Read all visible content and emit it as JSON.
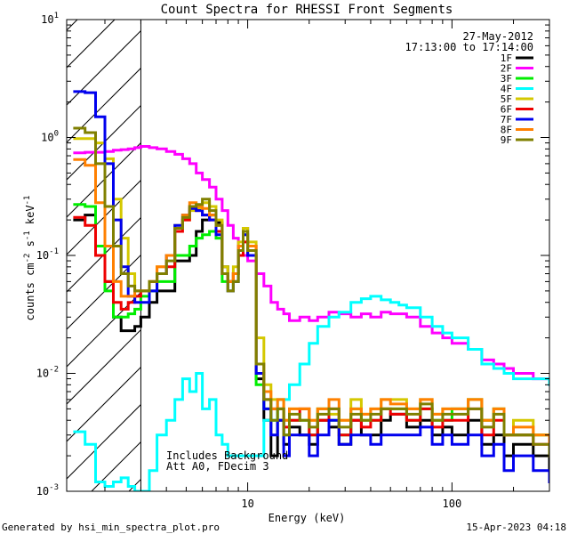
{
  "chart_data": {
    "type": "line",
    "title": "Count Spectra for RHESSI Front Segments",
    "xlabel": "Energy (keV)",
    "ylabel": "counts cm-2 s-1 keV-1",
    "xscale": "log",
    "yscale": "log",
    "xlim": [
      1.3,
      300
    ],
    "ylim": [
      0.001,
      10
    ],
    "x_ticks": [
      {
        "v": 10,
        "label": "10"
      },
      {
        "v": 100,
        "label": "100"
      }
    ],
    "y_ticks": [
      {
        "v": 10,
        "base": "10",
        "exp": "1"
      },
      {
        "v": 1,
        "base": "10",
        "exp": "0"
      },
      {
        "v": 0.1,
        "base": "10",
        "exp": "-1"
      },
      {
        "v": 0.01,
        "base": "10",
        "exp": "-2"
      },
      {
        "v": 0.001,
        "base": "10",
        "exp": "-3"
      }
    ],
    "date": "27-May-2012",
    "time_range": "17:13:00 to 17:14:00",
    "annotation_lines": [
      "Includes Background",
      "Att A0, FDecim 3"
    ],
    "hatched_region_xmax": 3.0,
    "legend_placement": "top-right",
    "series": [
      {
        "name": "1F",
        "color": "#000000",
        "x": [
          1.4,
          1.6,
          1.8,
          2.0,
          2.2,
          2.4,
          2.6,
          2.8,
          3.0,
          3.3,
          3.6,
          4.0,
          4.4,
          4.8,
          5.2,
          5.6,
          6.0,
          6.5,
          7.0,
          7.5,
          8.0,
          8.5,
          9.0,
          9.5,
          10,
          11,
          12,
          13,
          14,
          15,
          16,
          18,
          20,
          22,
          25,
          28,
          32,
          36,
          40,
          45,
          50,
          60,
          70,
          80,
          90,
          100,
          120,
          140,
          160,
          180,
          200,
          250,
          300
        ],
        "y": [
          0.2,
          0.22,
          0.1,
          0.06,
          0.03,
          0.023,
          0.023,
          0.025,
          0.03,
          0.04,
          0.05,
          0.05,
          0.09,
          0.09,
          0.1,
          0.16,
          0.2,
          0.22,
          0.19,
          0.08,
          0.06,
          0.07,
          0.12,
          0.17,
          0.12,
          0.009,
          0.004,
          0.002,
          0.004,
          0.0025,
          0.0035,
          0.003,
          0.0025,
          0.004,
          0.0035,
          0.0025,
          0.004,
          0.003,
          0.003,
          0.004,
          0.0045,
          0.0035,
          0.004,
          0.003,
          0.0035,
          0.003,
          0.004,
          0.0025,
          0.003,
          0.002,
          0.0025,
          0.002,
          0.0015
        ]
      },
      {
        "name": "2F",
        "color": "#ff00ff",
        "x": [
          1.4,
          1.6,
          1.8,
          2.0,
          2.2,
          2.4,
          2.6,
          2.8,
          3.0,
          3.3,
          3.6,
          4.0,
          4.4,
          4.8,
          5.2,
          5.6,
          6.0,
          6.5,
          7.0,
          7.5,
          8.0,
          8.5,
          9.0,
          9.5,
          10,
          11,
          12,
          13,
          14,
          15,
          16,
          18,
          20,
          22,
          25,
          28,
          32,
          36,
          40,
          45,
          50,
          60,
          70,
          80,
          90,
          100,
          120,
          140,
          160,
          180,
          200,
          250,
          300
        ],
        "y": [
          0.74,
          0.75,
          0.75,
          0.76,
          0.78,
          0.79,
          0.8,
          0.82,
          0.84,
          0.82,
          0.8,
          0.76,
          0.72,
          0.66,
          0.6,
          0.5,
          0.44,
          0.38,
          0.3,
          0.24,
          0.18,
          0.14,
          0.11,
          0.1,
          0.09,
          0.07,
          0.055,
          0.04,
          0.035,
          0.032,
          0.028,
          0.03,
          0.028,
          0.03,
          0.033,
          0.032,
          0.03,
          0.032,
          0.03,
          0.033,
          0.032,
          0.03,
          0.025,
          0.022,
          0.02,
          0.018,
          0.016,
          0.013,
          0.012,
          0.011,
          0.01,
          0.009,
          0.008
        ]
      },
      {
        "name": "3F",
        "color": "#00ee00",
        "x": [
          1.4,
          1.6,
          1.8,
          2.0,
          2.2,
          2.4,
          2.6,
          2.8,
          3.0,
          3.3,
          3.6,
          4.0,
          4.4,
          4.8,
          5.2,
          5.6,
          6.0,
          6.5,
          7.0,
          7.5,
          8.0,
          8.5,
          9.0,
          9.5,
          10,
          11,
          12,
          13,
          14,
          15,
          16,
          18,
          20,
          22,
          25,
          28,
          32,
          36,
          40,
          45,
          50,
          60,
          70,
          80,
          90,
          100,
          120,
          140,
          160,
          180,
          200,
          250,
          300
        ],
        "y": [
          0.27,
          0.26,
          0.12,
          0.05,
          0.03,
          0.03,
          0.032,
          0.035,
          0.045,
          0.05,
          0.06,
          0.06,
          0.1,
          0.1,
          0.12,
          0.14,
          0.15,
          0.16,
          0.14,
          0.06,
          0.05,
          0.06,
          0.1,
          0.15,
          0.1,
          0.008,
          0.005,
          0.004,
          0.005,
          0.003,
          0.004,
          0.004,
          0.003,
          0.005,
          0.004,
          0.003,
          0.005,
          0.004,
          0.004,
          0.005,
          0.005,
          0.004,
          0.005,
          0.004,
          0.004,
          0.005,
          0.006,
          0.004,
          0.005,
          0.003,
          0.003,
          0.003,
          0.002
        ]
      },
      {
        "name": "4F",
        "color": "#00ffff",
        "x": [
          1.4,
          1.6,
          1.8,
          2.0,
          2.2,
          2.4,
          2.6,
          2.8,
          3.0,
          3.3,
          3.6,
          4.0,
          4.4,
          4.8,
          5.2,
          5.6,
          6.0,
          6.5,
          7.0,
          7.5,
          8.0,
          9.0,
          10,
          12,
          14,
          16,
          18,
          20,
          22,
          25,
          28,
          32,
          36,
          40,
          45,
          50,
          55,
          60,
          70,
          80,
          90,
          100,
          120,
          140,
          160,
          180,
          200,
          250,
          300
        ],
        "y": [
          0.0032,
          0.0025,
          0.0012,
          0.0011,
          0.0012,
          0.0013,
          0.0011,
          0.001,
          0.001,
          0.0015,
          0.003,
          0.004,
          0.006,
          0.009,
          0.007,
          0.01,
          0.005,
          0.006,
          0.003,
          0.0025,
          0.002,
          0.002,
          0.002,
          0.004,
          0.006,
          0.008,
          0.012,
          0.018,
          0.025,
          0.03,
          0.033,
          0.04,
          0.043,
          0.045,
          0.042,
          0.04,
          0.038,
          0.036,
          0.03,
          0.025,
          0.022,
          0.02,
          0.016,
          0.012,
          0.011,
          0.01,
          0.009,
          0.009,
          0.008
        ]
      },
      {
        "name": "5F",
        "color": "#d4c800",
        "x": [
          1.4,
          1.6,
          1.8,
          2.0,
          2.2,
          2.4,
          2.6,
          2.8,
          3.0,
          3.3,
          3.6,
          4.0,
          4.4,
          4.8,
          5.2,
          5.6,
          6.0,
          6.5,
          7.0,
          7.5,
          8.0,
          8.5,
          9.0,
          9.5,
          10,
          11,
          12,
          13,
          14,
          15,
          16,
          18,
          20,
          22,
          25,
          28,
          32,
          36,
          40,
          45,
          50,
          60,
          70,
          80,
          90,
          100,
          120,
          140,
          160,
          180,
          200,
          250,
          300
        ],
        "y": [
          0.98,
          0.98,
          0.9,
          0.66,
          0.3,
          0.14,
          0.07,
          0.05,
          0.05,
          0.06,
          0.08,
          0.1,
          0.18,
          0.2,
          0.24,
          0.25,
          0.28,
          0.26,
          0.2,
          0.08,
          0.06,
          0.08,
          0.13,
          0.17,
          0.13,
          0.02,
          0.008,
          0.006,
          0.006,
          0.004,
          0.005,
          0.005,
          0.004,
          0.005,
          0.0045,
          0.004,
          0.006,
          0.0045,
          0.005,
          0.006,
          0.006,
          0.005,
          0.006,
          0.0045,
          0.005,
          0.005,
          0.006,
          0.004,
          0.005,
          0.003,
          0.004,
          0.003,
          0.002
        ]
      },
      {
        "name": "6F",
        "color": "#ee0000",
        "x": [
          1.4,
          1.6,
          1.8,
          2.0,
          2.2,
          2.4,
          2.6,
          2.8,
          3.0,
          3.3,
          3.6,
          4.0,
          4.4,
          4.8,
          5.2,
          5.6,
          6.0,
          6.5,
          7.0,
          7.5,
          8.0,
          8.5,
          9.0,
          9.5,
          10,
          11,
          12,
          13,
          14,
          15,
          16,
          18,
          20,
          22,
          25,
          28,
          32,
          36,
          40,
          45,
          50,
          60,
          70,
          80,
          90,
          100,
          120,
          140,
          160,
          180,
          200,
          250,
          300
        ],
        "y": [
          0.21,
          0.18,
          0.1,
          0.06,
          0.04,
          0.035,
          0.04,
          0.045,
          0.05,
          0.06,
          0.07,
          0.08,
          0.16,
          0.2,
          0.26,
          0.24,
          0.22,
          0.2,
          0.16,
          0.07,
          0.06,
          0.07,
          0.1,
          0.13,
          0.1,
          0.01,
          0.006,
          0.005,
          0.005,
          0.0035,
          0.004,
          0.005,
          0.003,
          0.004,
          0.005,
          0.003,
          0.004,
          0.0035,
          0.004,
          0.005,
          0.0045,
          0.004,
          0.005,
          0.0035,
          0.004,
          0.004,
          0.005,
          0.003,
          0.004,
          0.003,
          0.003,
          0.0025,
          0.002
        ]
      },
      {
        "name": "7F",
        "color": "#0000ee",
        "x": [
          1.4,
          1.6,
          1.8,
          2.0,
          2.2,
          2.4,
          2.6,
          2.8,
          3.0,
          3.3,
          3.6,
          4.0,
          4.4,
          4.8,
          5.2,
          5.6,
          6.0,
          6.5,
          7.0,
          7.5,
          8.0,
          8.5,
          9.0,
          9.5,
          10,
          11,
          12,
          13,
          14,
          15,
          16,
          18,
          20,
          22,
          25,
          28,
          32,
          36,
          40,
          45,
          50,
          60,
          70,
          80,
          90,
          100,
          120,
          140,
          160,
          180,
          200,
          250,
          300
        ],
        "y": [
          2.45,
          2.4,
          1.5,
          0.6,
          0.2,
          0.08,
          0.045,
          0.04,
          0.04,
          0.05,
          0.07,
          0.1,
          0.18,
          0.22,
          0.25,
          0.24,
          0.22,
          0.2,
          0.15,
          0.07,
          0.05,
          0.06,
          0.12,
          0.15,
          0.1,
          0.01,
          0.005,
          0.003,
          0.004,
          0.002,
          0.003,
          0.003,
          0.002,
          0.003,
          0.004,
          0.0025,
          0.003,
          0.003,
          0.0025,
          0.003,
          0.003,
          0.003,
          0.0035,
          0.0025,
          0.003,
          0.0025,
          0.003,
          0.002,
          0.0025,
          0.0015,
          0.002,
          0.0015,
          0.0012
        ]
      },
      {
        "name": "8F",
        "color": "#ff8000",
        "x": [
          1.4,
          1.6,
          1.8,
          2.0,
          2.2,
          2.4,
          2.6,
          2.8,
          3.0,
          3.3,
          3.6,
          4.0,
          4.4,
          4.8,
          5.2,
          5.6,
          6.0,
          6.5,
          7.0,
          7.5,
          8.0,
          8.5,
          9.0,
          9.5,
          10,
          11,
          12,
          13,
          14,
          15,
          16,
          18,
          20,
          22,
          25,
          28,
          32,
          36,
          40,
          45,
          50,
          60,
          70,
          80,
          90,
          100,
          120,
          140,
          160,
          180,
          200,
          250,
          300
        ],
        "y": [
          0.65,
          0.58,
          0.28,
          0.12,
          0.06,
          0.045,
          0.045,
          0.05,
          0.05,
          0.06,
          0.08,
          0.1,
          0.17,
          0.22,
          0.28,
          0.26,
          0.25,
          0.22,
          0.18,
          0.07,
          0.06,
          0.07,
          0.12,
          0.16,
          0.12,
          0.012,
          0.007,
          0.005,
          0.006,
          0.004,
          0.005,
          0.005,
          0.004,
          0.005,
          0.006,
          0.004,
          0.005,
          0.0045,
          0.005,
          0.006,
          0.0055,
          0.005,
          0.006,
          0.0045,
          0.005,
          0.005,
          0.006,
          0.004,
          0.005,
          0.003,
          0.0035,
          0.003,
          0.002
        ]
      },
      {
        "name": "9F",
        "color": "#808000",
        "x": [
          1.4,
          1.6,
          1.8,
          2.0,
          2.2,
          2.4,
          2.6,
          2.8,
          3.0,
          3.3,
          3.6,
          4.0,
          4.4,
          4.8,
          5.2,
          5.6,
          6.0,
          6.5,
          7.0,
          7.5,
          8.0,
          8.5,
          9.0,
          9.5,
          10,
          11,
          12,
          13,
          14,
          15,
          16,
          18,
          20,
          22,
          25,
          28,
          32,
          36,
          40,
          45,
          50,
          60,
          70,
          80,
          90,
          100,
          120,
          140,
          160,
          180,
          200,
          250,
          300
        ],
        "y": [
          1.2,
          1.1,
          0.6,
          0.26,
          0.12,
          0.07,
          0.055,
          0.05,
          0.05,
          0.06,
          0.07,
          0.09,
          0.17,
          0.21,
          0.26,
          0.27,
          0.3,
          0.24,
          0.18,
          0.07,
          0.05,
          0.06,
          0.11,
          0.16,
          0.11,
          0.012,
          0.006,
          0.004,
          0.005,
          0.003,
          0.0045,
          0.004,
          0.0035,
          0.0045,
          0.005,
          0.0035,
          0.0045,
          0.004,
          0.0045,
          0.005,
          0.005,
          0.0045,
          0.0055,
          0.004,
          0.0045,
          0.0045,
          0.005,
          0.0035,
          0.0045,
          0.003,
          0.003,
          0.0025,
          0.002
        ]
      }
    ]
  },
  "footer": {
    "generated_by": "Generated by hsi_min_spectra_plot.pro",
    "timestamp": "15-Apr-2023 04:18"
  }
}
